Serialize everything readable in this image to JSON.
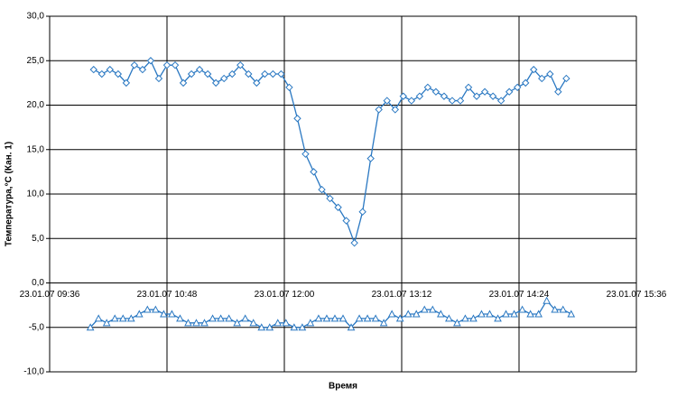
{
  "chart_data": {
    "type": "line",
    "x_label": "Время",
    "y_label": "Температура,°C (Кан. 1)",
    "xlim": [
      576,
      936
    ],
    "xticks": [
      {
        "value": 576,
        "label": "23.01.07 09:36"
      },
      {
        "value": 648,
        "label": "23.01.07 10:48"
      },
      {
        "value": 720,
        "label": "23.01.07 12:00"
      },
      {
        "value": 792,
        "label": "23.01.07 13:12"
      },
      {
        "value": 864,
        "label": "23.01.07 14:24"
      },
      {
        "value": 936,
        "label": "23.01.07 15:36"
      }
    ],
    "ylim": [
      -10,
      30
    ],
    "yticks": [
      {
        "value": -10,
        "label": "-10,0"
      },
      {
        "value": -5,
        "label": "-5,0"
      },
      {
        "value": 0,
        "label": "0,0"
      },
      {
        "value": 5,
        "label": "5,0"
      },
      {
        "value": 10,
        "label": "10,0"
      },
      {
        "value": 15,
        "label": "15,0"
      },
      {
        "value": 20,
        "label": "20,0"
      },
      {
        "value": 25,
        "label": "25,0"
      },
      {
        "value": 30,
        "label": "30,0"
      }
    ],
    "grid": true,
    "series": [
      {
        "color": "#2a78c2",
        "marker": "diamond",
        "x": [
          603,
          608,
          613,
          618,
          623,
          628,
          633,
          638,
          643,
          648,
          653,
          658,
          663,
          668,
          673,
          678,
          683,
          688,
          693,
          698,
          703,
          708,
          713,
          718,
          723,
          728,
          733,
          738,
          743,
          748,
          753,
          758,
          763,
          768,
          773,
          778,
          783,
          788,
          793,
          798,
          803,
          808,
          813,
          818,
          823,
          828,
          833,
          838,
          843,
          848,
          853,
          858,
          863,
          868,
          873,
          878,
          883,
          888,
          893
        ],
        "values": [
          24,
          23.5,
          24,
          23.5,
          22.5,
          24.5,
          24,
          25,
          23,
          24.5,
          24.5,
          22.5,
          23.5,
          24,
          23.5,
          22.5,
          23,
          23.5,
          24.5,
          23.5,
          22.5,
          23.5,
          23.5,
          23.5,
          22,
          18.5,
          14.5,
          12.5,
          10.5,
          9.5,
          8.5,
          7,
          4.5,
          8,
          14,
          19.5,
          20.5,
          19.5,
          21,
          20.5,
          21,
          22,
          21.5,
          21,
          20.5,
          20.5,
          22,
          21,
          21.5,
          21,
          20.5,
          21.5,
          22,
          22.5,
          24,
          23,
          23.5,
          21.5,
          23
        ]
      },
      {
        "color": "#2a78c2",
        "marker": "triangle",
        "x": [
          601,
          606,
          611,
          616,
          621,
          626,
          631,
          636,
          641,
          646,
          651,
          656,
          661,
          666,
          671,
          676,
          681,
          686,
          691,
          696,
          701,
          706,
          711,
          716,
          721,
          726,
          731,
          736,
          741,
          746,
          751,
          756,
          761,
          766,
          771,
          776,
          781,
          786,
          791,
          796,
          801,
          806,
          811,
          816,
          821,
          826,
          831,
          836,
          841,
          846,
          851,
          856,
          861,
          866,
          871,
          876,
          881,
          886,
          891,
          896
        ],
        "values": [
          -5,
          -4,
          -4.5,
          -4,
          -4,
          -4,
          -3.5,
          -3,
          -3,
          -3.5,
          -3.5,
          -4,
          -4.5,
          -4.5,
          -4.5,
          -4,
          -4,
          -4,
          -4.5,
          -4,
          -4.5,
          -5,
          -5,
          -4.5,
          -4.5,
          -5,
          -5,
          -4.5,
          -4,
          -4,
          -4,
          -4,
          -5,
          -4,
          -4,
          -4,
          -4.5,
          -3.5,
          -4,
          -3.5,
          -3.5,
          -3,
          -3,
          -3.5,
          -4,
          -4.5,
          -4,
          -4,
          -3.5,
          -3.5,
          -4,
          -3.5,
          -3.5,
          -3,
          -3.5,
          -3.5,
          -2,
          -3,
          -3,
          -3.5
        ]
      }
    ]
  }
}
